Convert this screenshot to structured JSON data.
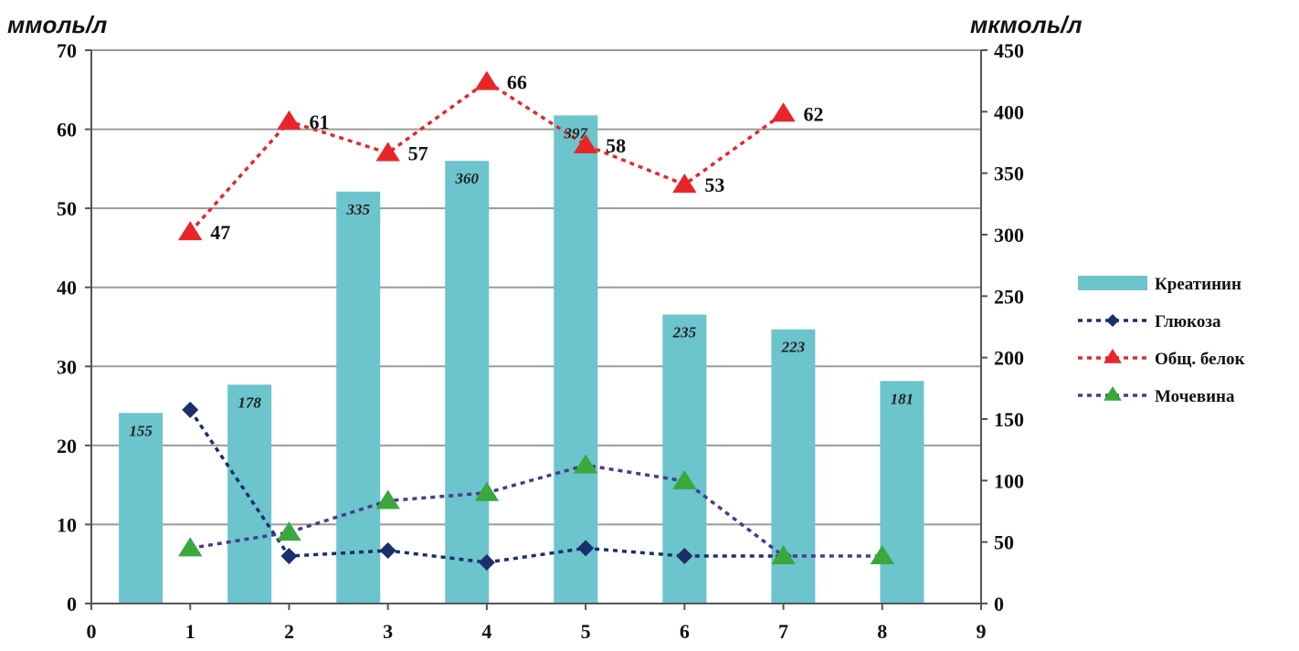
{
  "chart_data": {
    "type": "bar",
    "left_axis_label": "ммоль/л",
    "right_axis_label": "мкмоль/л",
    "xlim": [
      0,
      9
    ],
    "x_ticks": [
      "0",
      "1",
      "2",
      "3",
      "4",
      "5",
      "6",
      "7",
      "8",
      "9"
    ],
    "left_ylim": [
      0,
      70
    ],
    "left_ticks": [
      "0",
      "10",
      "20",
      "30",
      "40",
      "50",
      "60",
      "70"
    ],
    "right_ylim": [
      0,
      450
    ],
    "right_ticks": [
      "0",
      "50",
      "100",
      "150",
      "200",
      "250",
      "300",
      "350",
      "400",
      "450"
    ],
    "grid": true,
    "legend_position": "right",
    "series": [
      {
        "name": "Креатинин",
        "type": "bar",
        "axis": "right",
        "color": "#6cc4cc",
        "x": [
          0.5,
          1.6,
          2.7,
          3.8,
          4.9,
          6.0,
          7.1,
          8.2
        ],
        "values": [
          155,
          178,
          335,
          360,
          397,
          235,
          223,
          181
        ],
        "labels": [
          "155",
          "178",
          "335",
          "360",
          "397",
          "235",
          "223",
          "181"
        ]
      },
      {
        "name": "Глюкоза",
        "type": "line",
        "axis": "left",
        "color": "#1a2f6b",
        "marker": "diamond",
        "x": [
          1,
          2,
          3,
          4,
          5,
          6,
          7
        ],
        "values": [
          24.5,
          6.0,
          6.7,
          5.2,
          7.0,
          6.0,
          6.0
        ]
      },
      {
        "name": "Общ. белок",
        "type": "line",
        "axis": "left",
        "color": "#e8262a",
        "marker": "triangle",
        "x": [
          1,
          2,
          3,
          4,
          5,
          6,
          7
        ],
        "values": [
          47,
          61,
          57,
          66,
          58,
          53,
          62
        ],
        "labels": [
          "47",
          "61",
          "57",
          "66",
          "58",
          "53",
          "62"
        ]
      },
      {
        "name": "Мочевина",
        "type": "line",
        "axis": "left",
        "color": "#4a3a8c",
        "marker_color": "#3aa83a",
        "marker": "triangle",
        "x": [
          1,
          2,
          3,
          4,
          5,
          6,
          7,
          8
        ],
        "values": [
          7,
          9,
          13,
          14,
          17.5,
          15.5,
          6,
          6
        ]
      }
    ]
  }
}
